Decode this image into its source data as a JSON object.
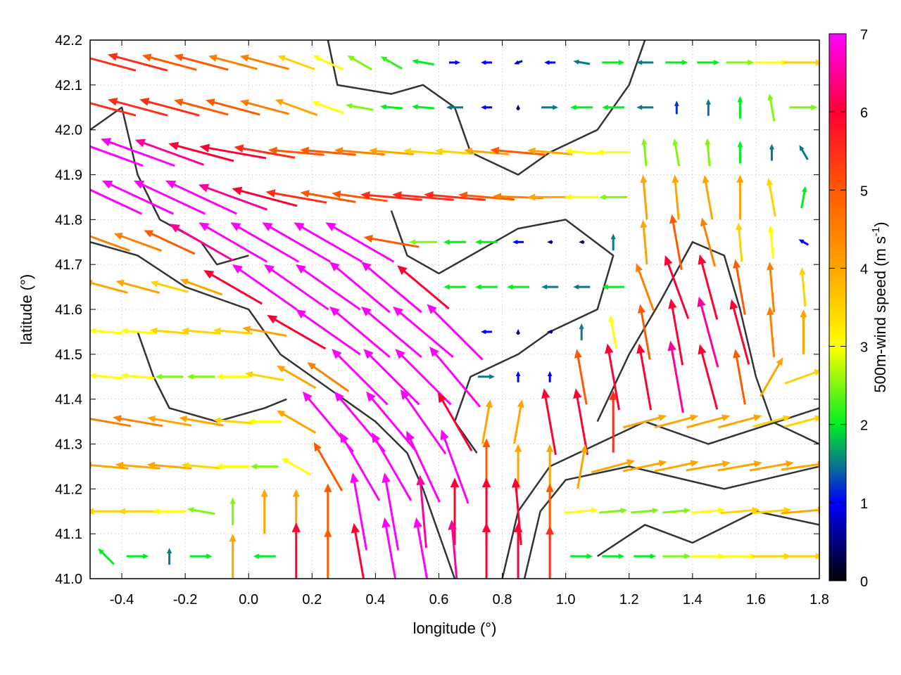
{
  "chart_data": {
    "type": "vector-field",
    "xlabel": "longitude (°)",
    "ylabel": "latitude (°)",
    "xlim": [
      -0.5,
      1.8
    ],
    "ylim": [
      41.0,
      42.2
    ],
    "xticks": [
      "-0.4",
      "-0.2",
      "0.0",
      "0.2",
      "0.4",
      "0.6",
      "0.8",
      "1.0",
      "1.2",
      "1.4",
      "1.6",
      "1.8"
    ],
    "yticks": [
      "41.0",
      "41.1",
      "41.2",
      "41.3",
      "41.4",
      "41.5",
      "41.6",
      "41.7",
      "41.8",
      "41.9",
      "42.0",
      "42.1",
      "42.2"
    ],
    "grid": true,
    "colorbar": {
      "label": "500m-wind speed (m s",
      "label_sup": "-1",
      "label_end": ")",
      "range": [
        0,
        7
      ],
      "ticks": [
        "0",
        "1",
        "2",
        "3",
        "4",
        "5",
        "6",
        "7"
      ],
      "colormap": [
        [
          "0",
          "#000000"
        ],
        [
          "1",
          "#0000ff"
        ],
        [
          "1.5",
          "#0a7a8a"
        ],
        [
          "2",
          "#00ee22"
        ],
        [
          "3",
          "#ffff00"
        ],
        [
          "4",
          "#ffa500"
        ],
        [
          "5",
          "#ff5a00"
        ],
        [
          "6",
          "#ff0033"
        ],
        [
          "7",
          "#ff00ff"
        ]
      ]
    },
    "vectors": {
      "lon": [
        -0.45,
        -0.35,
        -0.25,
        -0.15,
        -0.05,
        0.05,
        0.15,
        0.25,
        0.35,
        0.45,
        0.55,
        0.65,
        0.75,
        0.85,
        0.95,
        1.05,
        1.15,
        1.25,
        1.35,
        1.45,
        1.55,
        1.65,
        1.75
      ],
      "lat": [
        42.15,
        42.05,
        41.95,
        41.85,
        41.75,
        41.65,
        41.55,
        41.45,
        41.35,
        41.25,
        41.15,
        41.05
      ],
      "speed": [
        [
          5.5,
          5.5,
          5,
          5,
          4.5,
          4.5,
          3.5,
          3,
          2.5,
          2.2,
          2,
          1,
          1,
          0.8,
          1,
          1.5,
          2,
          1.5,
          2,
          2,
          2.5,
          3,
          3.5
        ],
        [
          5.5,
          5.5,
          5.5,
          5,
          5,
          4.5,
          4,
          3,
          2.5,
          2,
          2,
          1.5,
          1,
          0.5,
          1.5,
          2,
          2,
          1.5,
          1.2,
          1.5,
          2,
          2.5,
          2.5
        ],
        [
          7,
          7,
          6.5,
          6,
          6,
          5.5,
          5,
          5,
          4.5,
          4,
          3.5,
          3.5,
          4,
          5,
          4,
          3,
          3,
          2.5,
          2.5,
          2.5,
          2,
          1.5,
          1.5
        ],
        [
          7,
          7,
          7,
          7,
          6.5,
          6,
          5.5,
          5,
          5,
          5.5,
          5.5,
          5.5,
          5,
          4.5,
          4,
          3,
          2.5,
          4,
          4,
          4,
          4,
          3.5,
          2
        ],
        [
          4.5,
          4.5,
          5,
          6.5,
          7,
          7,
          7,
          7,
          7,
          5,
          2.5,
          2,
          2,
          1,
          0.5,
          0.5,
          1.5,
          4,
          5,
          4.5,
          3.5,
          3,
          1
        ],
        [
          4,
          4,
          3.5,
          4,
          6,
          7,
          7,
          7,
          7,
          7,
          6,
          2,
          2,
          2,
          1.5,
          1.5,
          2,
          4.5,
          6,
          6,
          5,
          4.5,
          3.5
        ],
        [
          3,
          3,
          3.5,
          3.5,
          3.5,
          4,
          6,
          7,
          7,
          7,
          7,
          7,
          1,
          0.5,
          0.5,
          1.5,
          3,
          5,
          6,
          6.5,
          6,
          4.5,
          4
        ],
        [
          3,
          3,
          2.5,
          2.5,
          3,
          3.5,
          4,
          4.5,
          7,
          7,
          7,
          7,
          1.5,
          1,
          1,
          5,
          6,
          6,
          6.5,
          6,
          5,
          4,
          3.5
        ],
        [
          4.5,
          4.5,
          4,
          4,
          3.5,
          3,
          4,
          7,
          7,
          7,
          7,
          6,
          4,
          4,
          6,
          6,
          5.5,
          4,
          4,
          4,
          4,
          3.5,
          3.5
        ],
        [
          4,
          4,
          4,
          3.5,
          3,
          2.5,
          3,
          5,
          7,
          7,
          7,
          7,
          5,
          4,
          4,
          4,
          4,
          4,
          4,
          4,
          4,
          4,
          4
        ],
        [
          3.5,
          3.5,
          3,
          2.5,
          2.5,
          4,
          4,
          5,
          7,
          7,
          6.5,
          6,
          6,
          6,
          5,
          3,
          2.5,
          2.5,
          2.5,
          3,
          3.5,
          3.5,
          4
        ],
        [
          2,
          2,
          1.5,
          2,
          4,
          2,
          6,
          5,
          6,
          7,
          7,
          6.5,
          6,
          6,
          5.5,
          2,
          2,
          2,
          2.5,
          3,
          3,
          3.5,
          3.5
        ]
      ],
      "direction_deg": [
        [
          165,
          165,
          165,
          165,
          165,
          165,
          160,
          155,
          150,
          150,
          170,
          0,
          180,
          200,
          180,
          170,
          0,
          180,
          0,
          0,
          0,
          0,
          0
        ],
        [
          165,
          165,
          165,
          165,
          165,
          165,
          160,
          160,
          170,
          175,
          175,
          180,
          180,
          90,
          0,
          180,
          180,
          180,
          90,
          90,
          90,
          100,
          0
        ],
        [
          160,
          160,
          160,
          165,
          170,
          170,
          175,
          175,
          175,
          175,
          175,
          175,
          175,
          175,
          175,
          175,
          180,
          95,
          100,
          95,
          90,
          90,
          120
        ],
        [
          155,
          155,
          155,
          155,
          160,
          165,
          170,
          170,
          172,
          175,
          175,
          175,
          175,
          178,
          180,
          180,
          180,
          95,
          95,
          100,
          90,
          100,
          80
        ],
        [
          160,
          160,
          155,
          150,
          150,
          150,
          150,
          150,
          150,
          170,
          180,
          180,
          180,
          180,
          180,
          180,
          90,
          95,
          100,
          105,
          95,
          95,
          150
        ],
        [
          165,
          165,
          165,
          160,
          150,
          145,
          145,
          145,
          140,
          140,
          140,
          180,
          180,
          180,
          180,
          180,
          180,
          110,
          110,
          105,
          100,
          95,
          95
        ],
        [
          175,
          175,
          175,
          175,
          175,
          170,
          150,
          145,
          140,
          140,
          140,
          135,
          180,
          90,
          180,
          90,
          100,
          100,
          100,
          105,
          105,
          95,
          90
        ],
        [
          175,
          175,
          180,
          180,
          180,
          170,
          150,
          145,
          135,
          135,
          135,
          130,
          0,
          90,
          90,
          100,
          100,
          100,
          100,
          105,
          100,
          60,
          20
        ],
        [
          170,
          170,
          170,
          170,
          175,
          180,
          150,
          130,
          130,
          130,
          125,
          120,
          80,
          80,
          100,
          100,
          90,
          15,
          15,
          15,
          15,
          15,
          15
        ],
        [
          175,
          175,
          175,
          175,
          180,
          180,
          150,
          120,
          120,
          120,
          115,
          110,
          90,
          90,
          90,
          80,
          15,
          12,
          12,
          10,
          10,
          10,
          8
        ],
        [
          180,
          180,
          180,
          170,
          90,
          90,
          90,
          90,
          100,
          100,
          95,
          90,
          90,
          95,
          90,
          5,
          5,
          5,
          5,
          5,
          5,
          5,
          5
        ],
        [
          135,
          0,
          90,
          0,
          90,
          180,
          90,
          90,
          100,
          100,
          100,
          95,
          90,
          90,
          90,
          0,
          0,
          0,
          0,
          0,
          0,
          0,
          0
        ]
      ]
    },
    "contours": [
      [
        [
          0.25,
          42.2
        ],
        [
          0.28,
          42.1
        ],
        [
          0.45,
          42.08
        ],
        [
          0.55,
          42.1
        ],
        [
          0.65,
          42.05
        ],
        [
          0.7,
          41.95
        ],
        [
          0.85,
          41.9
        ],
        [
          0.95,
          41.95
        ],
        [
          1.1,
          42.0
        ],
        [
          1.2,
          42.1
        ],
        [
          1.25,
          42.2
        ]
      ],
      [
        [
          0.45,
          41.82
        ],
        [
          0.5,
          41.72
        ],
        [
          0.6,
          41.68
        ],
        [
          0.7,
          41.72
        ],
        [
          0.85,
          41.78
        ],
        [
          1.0,
          41.8
        ],
        [
          1.15,
          41.72
        ],
        [
          1.1,
          41.6
        ],
        [
          0.95,
          41.55
        ],
        [
          0.85,
          41.5
        ],
        [
          0.7,
          41.45
        ],
        [
          0.65,
          41.35
        ],
        [
          0.72,
          41.28
        ]
      ],
      [
        [
          -0.5,
          41.75
        ],
        [
          -0.35,
          41.72
        ],
        [
          -0.2,
          41.65
        ],
        [
          0.0,
          41.6
        ],
        [
          0.1,
          41.5
        ],
        [
          0.2,
          41.45
        ],
        [
          0.3,
          41.4
        ],
        [
          0.4,
          41.35
        ],
        [
          0.5,
          41.28
        ],
        [
          0.55,
          41.2
        ],
        [
          0.6,
          41.1
        ],
        [
          0.65,
          41.0
        ]
      ],
      [
        [
          -0.5,
          42.0
        ],
        [
          -0.4,
          42.05
        ],
        [
          -0.35,
          41.9
        ],
        [
          -0.28,
          41.8
        ],
        [
          -0.15,
          41.75
        ],
        [
          -0.1,
          41.7
        ],
        [
          0.0,
          41.72
        ]
      ],
      [
        [
          1.1,
          41.35
        ],
        [
          1.2,
          41.5
        ],
        [
          1.3,
          41.62
        ],
        [
          1.4,
          41.75
        ],
        [
          1.5,
          41.72
        ],
        [
          1.55,
          41.6
        ],
        [
          1.6,
          41.45
        ],
        [
          1.65,
          41.35
        ],
        [
          1.8,
          41.3
        ]
      ],
      [
        [
          0.8,
          41.0
        ],
        [
          0.85,
          41.15
        ],
        [
          0.95,
          41.25
        ],
        [
          1.1,
          41.3
        ],
        [
          1.25,
          41.35
        ],
        [
          1.45,
          41.3
        ],
        [
          1.8,
          41.38
        ]
      ],
      [
        [
          0.87,
          41.0
        ],
        [
          0.92,
          41.15
        ],
        [
          1.0,
          41.22
        ],
        [
          1.2,
          41.25
        ],
        [
          1.5,
          41.2
        ],
        [
          1.8,
          41.25
        ]
      ],
      [
        [
          1.1,
          41.05
        ],
        [
          1.25,
          41.12
        ],
        [
          1.4,
          41.08
        ],
        [
          1.6,
          41.15
        ],
        [
          1.8,
          41.12
        ]
      ],
      [
        [
          -0.35,
          41.55
        ],
        [
          -0.3,
          41.45
        ],
        [
          -0.25,
          41.38
        ],
        [
          -0.1,
          41.35
        ],
        [
          0.05,
          41.38
        ],
        [
          0.12,
          41.4
        ]
      ]
    ]
  }
}
